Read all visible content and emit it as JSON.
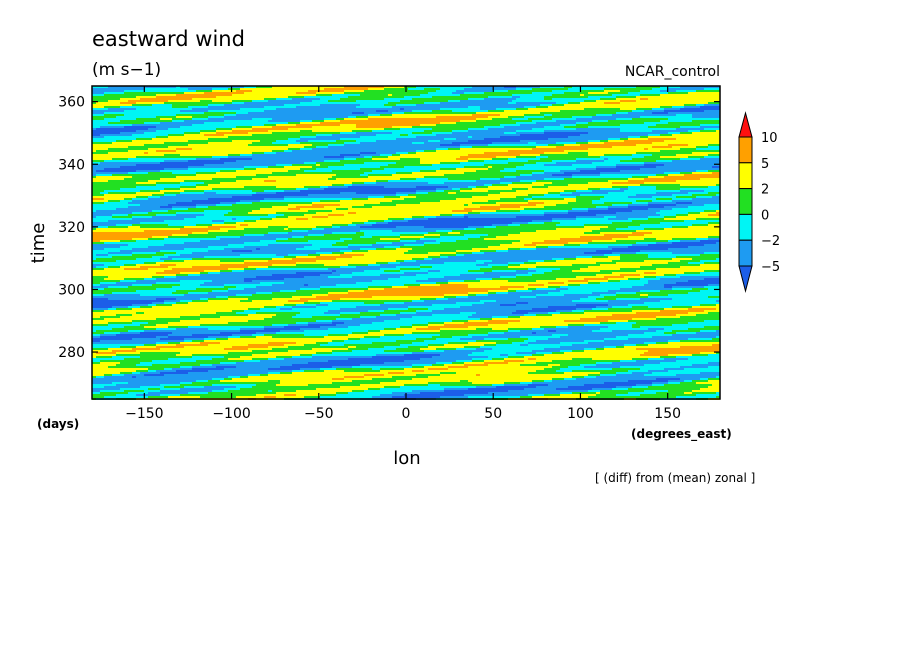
{
  "chart_data": {
    "type": "heatmap",
    "title": "eastward wind",
    "subtitle": "(m s−1)",
    "experiment_label": "NCAR_control",
    "xlabel": "lon",
    "xunit": "(degrees_east)",
    "ylabel": "time",
    "yunit": "(days)",
    "annotation": "[ (diff) from (mean) zonal ]",
    "xlim": [
      -180,
      180
    ],
    "ylim": [
      265,
      365
    ],
    "xticks": [
      -150,
      -100,
      -50,
      0,
      50,
      100,
      150
    ],
    "yticks": [
      280,
      300,
      320,
      340,
      360
    ],
    "xtick_labels": [
      "−150",
      "−100",
      "−50",
      "0",
      "50",
      "100",
      "150"
    ],
    "ytick_labels": [
      "280",
      "300",
      "320",
      "340",
      "360"
    ],
    "colorbar": {
      "levels": [
        -5,
        -2,
        0,
        2,
        5,
        10
      ],
      "labels": [
        "−5",
        "−2",
        "0",
        "2",
        "5",
        "10"
      ],
      "colors": [
        "#1c5ee8",
        "#1e9bf2",
        "#00f5f5",
        "#22e022",
        "#ffff00",
        "#ffa000",
        "#ff1010"
      ]
    },
    "field_description": "eastward-propagating anomaly bands tilted upward to the east (phase speed about 20 deg per day)"
  }
}
